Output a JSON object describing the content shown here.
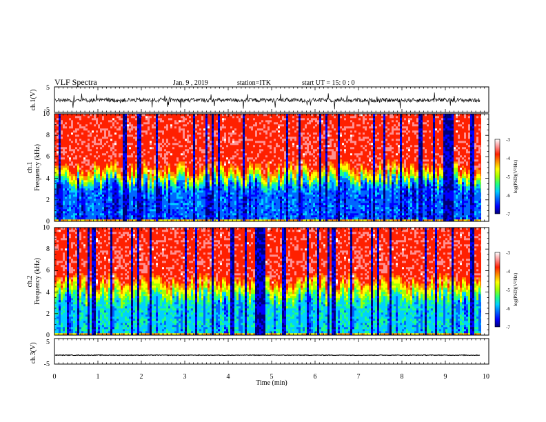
{
  "header": {
    "title": "VLF Spectra",
    "date": "Jan. 9 , 2019",
    "station": "station=ITK",
    "start": "start UT =   15: 0 : 0"
  },
  "colormap": [
    "#00007a",
    "#0000ff",
    "#0066ff",
    "#00d0ff",
    "#20ff80",
    "#a0ff00",
    "#ffff00",
    "#ff9000",
    "#ff2000",
    "#ff9090",
    "#ffffff"
  ],
  "chart_data": [
    {
      "type": "line",
      "id": "ch1-waveform",
      "ylabel": "ch.1(V)",
      "ylim": [
        -5,
        5
      ],
      "y_ticklabels": [
        "5",
        "-5"
      ],
      "xlim": [
        0,
        10
      ],
      "baseline": -0.2
    },
    {
      "type": "heatmap",
      "id": "ch1-spectrogram",
      "ylabel_top": "ch.1",
      "ylabel": "Frequency (kHz)",
      "ylim": [
        0,
        10
      ],
      "y_ticks": [
        0,
        2,
        4,
        6,
        8,
        10
      ],
      "y_ticklabels": [
        "0",
        "2",
        "4",
        "6",
        "8",
        "10"
      ],
      "xlim": [
        0,
        9.82
      ],
      "colorbar_label": "log(PSD)(V²/Hz)",
      "colorbar_range": [
        -7,
        -3
      ],
      "colorbar_ticklabels": [
        "-3",
        "-4",
        "-5",
        "-6",
        "-7"
      ]
    },
    {
      "type": "heatmap",
      "id": "ch2-spectrogram",
      "ylabel_top": "ch.2",
      "ylabel": "Frequency (kHz)",
      "ylim": [
        0,
        10
      ],
      "y_ticks": [
        0,
        2,
        4,
        6,
        8,
        10
      ],
      "y_ticklabels": [
        "0",
        "2",
        "4",
        "6",
        "8",
        "10"
      ],
      "xlim": [
        0,
        9.82
      ],
      "colorbar_label": "log(PSD)(V²/Hz)",
      "colorbar_range": [
        -7,
        -3
      ],
      "colorbar_ticklabels": [
        "-3",
        "-4",
        "-5",
        "-6",
        "-7"
      ]
    },
    {
      "type": "line",
      "id": "ch3-waveform",
      "ylabel": "ch.3(V)",
      "ylim": [
        -5,
        5
      ],
      "y_ticklabels": [
        "5",
        "-5"
      ],
      "xlim": [
        0,
        10
      ],
      "baseline": -1.5
    }
  ],
  "xaxis": {
    "label": "Time (min)",
    "ticks": [
      0,
      1,
      2,
      3,
      4,
      5,
      6,
      7,
      8,
      9,
      10
    ],
    "ticklabels": [
      "0",
      "1",
      "2",
      "3",
      "4",
      "5",
      "6",
      "7",
      "8",
      "9",
      "10"
    ]
  }
}
